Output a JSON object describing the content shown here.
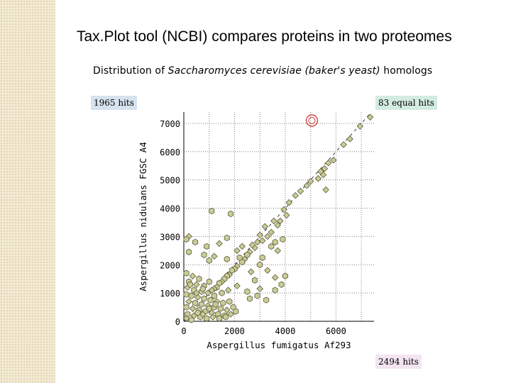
{
  "slide": {
    "title": "Tax.Plot tool (NCBI) compares proteins in two proteomes"
  },
  "figure": {
    "title_prefix": "Distribution of ",
    "title_italic": "Saccharomyces cerevisiae (baker's yeast)",
    "title_suffix": " homologs",
    "left_hits": "1965 hits",
    "equal_hits": "83 equal hits",
    "bottom_hits": "2494 hits"
  },
  "chart_data": {
    "type": "scatter",
    "xlabel": "Aspergillus fumigatus Af293",
    "ylabel": "Aspergillus nidulans FGSC A4",
    "xlim": [
      0,
      7500
    ],
    "ylim": [
      0,
      7400
    ],
    "xticks": [
      0,
      2000,
      4000,
      6000
    ],
    "yticks": [
      0,
      1000,
      2000,
      3000,
      4000,
      5000,
      6000,
      7000
    ],
    "grid": true,
    "diagonal": true,
    "highlight_point": {
      "x": 5050,
      "y": 7100
    },
    "colors": {
      "marker_fill": "#c9cc96",
      "marker_stroke": "#5a5a3a",
      "grid": "#808080",
      "highlight": "#d43a3a"
    },
    "points": [
      {
        "x": 7350,
        "y": 7220
      },
      {
        "x": 6950,
        "y": 6900
      },
      {
        "x": 6550,
        "y": 6450
      },
      {
        "x": 6300,
        "y": 6250
      },
      {
        "x": 5900,
        "y": 5700
      },
      {
        "x": 5700,
        "y": 5600
      },
      {
        "x": 5550,
        "y": 5400
      },
      {
        "x": 5500,
        "y": 5180
      },
      {
        "x": 5400,
        "y": 5300
      },
      {
        "x": 5300,
        "y": 5050
      },
      {
        "x": 5600,
        "y": 4650
      },
      {
        "x": 5000,
        "y": 4950
      },
      {
        "x": 4850,
        "y": 4800
      },
      {
        "x": 4600,
        "y": 4600
      },
      {
        "x": 4400,
        "y": 4450
      },
      {
        "x": 4150,
        "y": 4200
      },
      {
        "x": 4050,
        "y": 3750
      },
      {
        "x": 3950,
        "y": 3950
      },
      {
        "x": 3800,
        "y": 3550
      },
      {
        "x": 3700,
        "y": 3400
      },
      {
        "x": 3550,
        "y": 3550
      },
      {
        "x": 3450,
        "y": 3150
      },
      {
        "x": 3300,
        "y": 3000
      },
      {
        "x": 3200,
        "y": 3350
      },
      {
        "x": 3100,
        "y": 2850
      },
      {
        "x": 3000,
        "y": 3050
      },
      {
        "x": 2900,
        "y": 2800
      },
      {
        "x": 2800,
        "y": 2600
      },
      {
        "x": 2700,
        "y": 2700
      },
      {
        "x": 2600,
        "y": 2450
      },
      {
        "x": 2500,
        "y": 2350
      },
      {
        "x": 2400,
        "y": 2200
      },
      {
        "x": 2300,
        "y": 2100
      },
      {
        "x": 2200,
        "y": 2250
      },
      {
        "x": 2100,
        "y": 1950
      },
      {
        "x": 2000,
        "y": 1850
      },
      {
        "x": 1900,
        "y": 1800
      },
      {
        "x": 1800,
        "y": 1650
      },
      {
        "x": 1700,
        "y": 1600
      },
      {
        "x": 1600,
        "y": 1500
      },
      {
        "x": 1500,
        "y": 1400
      },
      {
        "x": 1400,
        "y": 1350
      },
      {
        "x": 1300,
        "y": 1200
      },
      {
        "x": 1200,
        "y": 1150
      },
      {
        "x": 1850,
        "y": 3800
      },
      {
        "x": 1100,
        "y": 3900
      },
      {
        "x": 200,
        "y": 3000
      },
      {
        "x": 100,
        "y": 2900
      },
      {
        "x": 450,
        "y": 2800
      },
      {
        "x": 1400,
        "y": 2750
      },
      {
        "x": 1700,
        "y": 2950
      },
      {
        "x": 900,
        "y": 2650
      },
      {
        "x": 2300,
        "y": 2650
      },
      {
        "x": 200,
        "y": 2450
      },
      {
        "x": 800,
        "y": 2350
      },
      {
        "x": 1200,
        "y": 2300
      },
      {
        "x": 1000,
        "y": 2150
      },
      {
        "x": 1700,
        "y": 2200
      },
      {
        "x": 2100,
        "y": 2500
      },
      {
        "x": 3600,
        "y": 2800
      },
      {
        "x": 3450,
        "y": 2650
      },
      {
        "x": 3700,
        "y": 2500
      },
      {
        "x": 3900,
        "y": 2900
      },
      {
        "x": 3100,
        "y": 2250
      },
      {
        "x": 3300,
        "y": 1800
      },
      {
        "x": 3000,
        "y": 2000
      },
      {
        "x": 2800,
        "y": 1450
      },
      {
        "x": 2650,
        "y": 1750
      },
      {
        "x": 3850,
        "y": 1300
      },
      {
        "x": 3600,
        "y": 1100
      },
      {
        "x": 3000,
        "y": 1150
      },
      {
        "x": 2900,
        "y": 900
      },
      {
        "x": 2500,
        "y": 1050
      },
      {
        "x": 2100,
        "y": 1250
      },
      {
        "x": 2600,
        "y": 800
      },
      {
        "x": 3250,
        "y": 750
      },
      {
        "x": 3600,
        "y": 1550
      },
      {
        "x": 4000,
        "y": 1600
      },
      {
        "x": 100,
        "y": 1700
      },
      {
        "x": 350,
        "y": 1600
      },
      {
        "x": 600,
        "y": 1500
      },
      {
        "x": 200,
        "y": 1400
      },
      {
        "x": 500,
        "y": 1300
      },
      {
        "x": 800,
        "y": 1250
      },
      {
        "x": 1000,
        "y": 1400
      },
      {
        "x": 150,
        "y": 1200
      },
      {
        "x": 400,
        "y": 1100
      },
      {
        "x": 700,
        "y": 1050
      },
      {
        "x": 950,
        "y": 1000
      },
      {
        "x": 1200,
        "y": 900
      },
      {
        "x": 1500,
        "y": 1000
      },
      {
        "x": 1750,
        "y": 1100
      },
      {
        "x": 100,
        "y": 950
      },
      {
        "x": 300,
        "y": 900
      },
      {
        "x": 550,
        "y": 850
      },
      {
        "x": 800,
        "y": 800
      },
      {
        "x": 1050,
        "y": 750
      },
      {
        "x": 1300,
        "y": 700
      },
      {
        "x": 1550,
        "y": 650
      },
      {
        "x": 1800,
        "y": 700
      },
      {
        "x": 200,
        "y": 700
      },
      {
        "x": 450,
        "y": 650
      },
      {
        "x": 700,
        "y": 600
      },
      {
        "x": 950,
        "y": 550
      },
      {
        "x": 1200,
        "y": 500
      },
      {
        "x": 1450,
        "y": 450
      },
      {
        "x": 1700,
        "y": 400
      },
      {
        "x": 1950,
        "y": 500
      },
      {
        "x": 100,
        "y": 500
      },
      {
        "x": 350,
        "y": 450
      },
      {
        "x": 600,
        "y": 400
      },
      {
        "x": 850,
        "y": 350
      },
      {
        "x": 1100,
        "y": 300
      },
      {
        "x": 1350,
        "y": 250
      },
      {
        "x": 1600,
        "y": 200
      },
      {
        "x": 1850,
        "y": 250
      },
      {
        "x": 2050,
        "y": 350
      },
      {
        "x": 150,
        "y": 250
      },
      {
        "x": 400,
        "y": 200
      },
      {
        "x": 650,
        "y": 150
      },
      {
        "x": 900,
        "y": 100
      },
      {
        "x": 1150,
        "y": 150
      },
      {
        "x": 1400,
        "y": 100
      },
      {
        "x": 1650,
        "y": 150
      },
      {
        "x": 100,
        "y": 100
      },
      {
        "x": 300,
        "y": 50
      },
      {
        "x": 550,
        "y": 300
      },
      {
        "x": 750,
        "y": 250
      },
      {
        "x": 1000,
        "y": 450
      },
      {
        "x": 1250,
        "y": 600
      },
      {
        "x": 500,
        "y": 1000
      },
      {
        "x": 250,
        "y": 1300
      },
      {
        "x": 750,
        "y": 1150
      },
      {
        "x": 1100,
        "y": 1100
      }
    ]
  }
}
